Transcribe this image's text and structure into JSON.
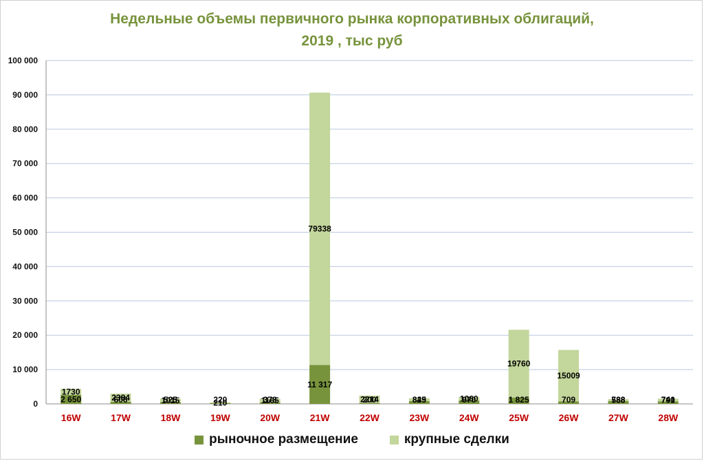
{
  "chart_data": {
    "type": "bar",
    "stacked": true,
    "title_line1": "Недельные объемы первичного рынка корпоративных облигаций,",
    "title_line2": "2019 , тыс руб",
    "categories": [
      "16W",
      "17W",
      "18W",
      "19W",
      "20W",
      "21W",
      "22W",
      "23W",
      "24W",
      "25W",
      "26W",
      "27W",
      "28W"
    ],
    "ylim": [
      0,
      100000
    ],
    "yticks": [
      "0",
      "10 000",
      "20 000",
      "30 000",
      "40 000",
      "50 000",
      "60 000",
      "70 000",
      "80 000",
      "90 000",
      "100 000"
    ],
    "grid": true,
    "legend_position": "bottom",
    "series": [
      {
        "name": "рыночное размещение",
        "color": "#77933c",
        "values": [
          2650,
          606,
          525,
          220,
          378,
          11317,
          200,
          825,
          970,
          1825,
          709,
          788,
          740
        ],
        "labels": [
          "2 650",
          "606",
          "525",
          "220",
          "378",
          "11 317",
          "200",
          "825",
          "970",
          "1 825",
          "709",
          "788",
          "740"
        ]
      },
      {
        "name": "крупные сделки",
        "color": "#c3d69b",
        "values": [
          1730,
          2384,
          1015,
          210,
          1165,
          79338,
          2214,
          849,
          1060,
          19760,
          15009,
          588,
          791
        ],
        "labels": [
          "1730",
          "2384",
          "1015",
          "210",
          "1165",
          "79338",
          "2214",
          "849",
          "1060",
          "19760",
          "15009",
          "588",
          "791"
        ]
      }
    ]
  }
}
